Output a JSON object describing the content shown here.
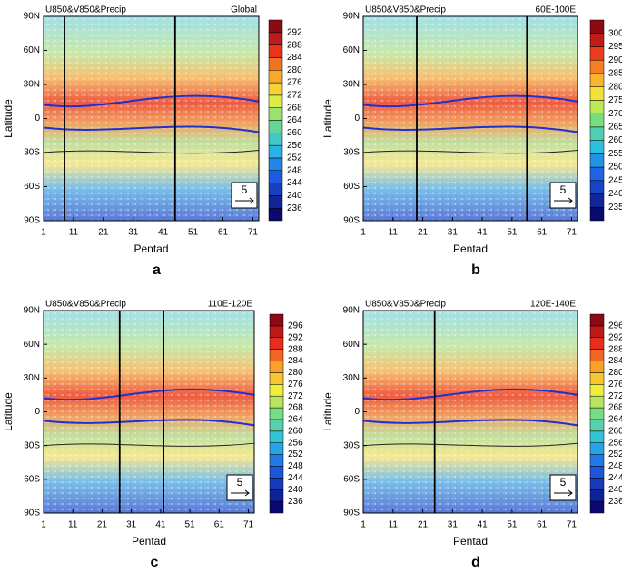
{
  "chart_data": [
    {
      "type": "vector",
      "title": "U850&V850&Precip",
      "region": "Global",
      "xlabel": "Pentad",
      "ylabel": "Latitude",
      "panel_label": "a",
      "xlim": [
        1,
        73
      ],
      "xticks": [
        1,
        11,
        21,
        31,
        41,
        51,
        61,
        71
      ],
      "ylim": [
        -90,
        90
      ],
      "yticks": [
        {
          "value": -90,
          "label": "90S"
        },
        {
          "value": -60,
          "label": "60S"
        },
        {
          "value": -30,
          "label": "30S"
        },
        0,
        {
          "value": 30,
          "label": "30N"
        },
        {
          "value": 60,
          "label": "60N"
        },
        {
          "value": 90,
          "label": "90N"
        }
      ],
      "vlines": [
        8,
        45
      ],
      "reference_vector": 5,
      "colorbar": [
        236,
        240,
        244,
        248,
        252,
        256,
        260,
        264,
        268,
        272,
        276,
        280,
        284,
        288,
        292
      ]
    },
    {
      "type": "vector",
      "title": "U850&V850&Precip",
      "region": "60E-100E",
      "xlabel": "Pentad",
      "ylabel": "Latitude",
      "panel_label": "b",
      "xlim": [
        1,
        73
      ],
      "xticks": [
        1,
        11,
        21,
        31,
        41,
        51,
        61,
        71
      ],
      "ylim": [
        -90,
        90
      ],
      "yticks": [
        {
          "value": -90,
          "label": "90S"
        },
        {
          "value": -60,
          "label": "60S"
        },
        {
          "value": -30,
          "label": "30S"
        },
        0,
        {
          "value": 30,
          "label": "30N"
        },
        {
          "value": 60,
          "label": "60N"
        },
        {
          "value": 90,
          "label": "90N"
        }
      ],
      "vlines": [
        19,
        56
      ],
      "reference_vector": 5,
      "colorbar": [
        235,
        240,
        245,
        250,
        255,
        260,
        265,
        270,
        275,
        280,
        285,
        290,
        295,
        300
      ]
    },
    {
      "type": "vector",
      "title": "U850&V850&Precip",
      "region": "110E-120E",
      "xlabel": "Pentad",
      "ylabel": "Latitude",
      "panel_label": "c",
      "xlim": [
        1,
        73
      ],
      "xticks": [
        1,
        11,
        21,
        31,
        41,
        51,
        61,
        71
      ],
      "ylim": [
        -90,
        90
      ],
      "yticks": [
        {
          "value": -90,
          "label": "90S"
        },
        {
          "value": -60,
          "label": "60S"
        },
        {
          "value": -30,
          "label": "30S"
        },
        0,
        {
          "value": 30,
          "label": "30N"
        },
        {
          "value": 60,
          "label": "60N"
        },
        {
          "value": 90,
          "label": "90N"
        }
      ],
      "vlines": [
        27,
        42
      ],
      "reference_vector": 5,
      "colorbar": [
        236,
        240,
        244,
        248,
        252,
        256,
        260,
        264,
        268,
        272,
        276,
        280,
        284,
        288,
        292,
        296
      ]
    },
    {
      "type": "vector",
      "title": "U850&V850&Precip",
      "region": "120E-140E",
      "xlabel": "Pentad",
      "ylabel": "Latitude",
      "panel_label": "d",
      "xlim": [
        1,
        73
      ],
      "xticks": [
        1,
        11,
        21,
        31,
        41,
        51,
        61,
        71
      ],
      "ylim": [
        -90,
        90
      ],
      "yticks": [
        {
          "value": -90,
          "label": "90S"
        },
        {
          "value": -60,
          "label": "60S"
        },
        {
          "value": -30,
          "label": "30S"
        },
        0,
        {
          "value": 30,
          "label": "30N"
        },
        {
          "value": 60,
          "label": "60N"
        },
        {
          "value": 90,
          "label": "90N"
        }
      ],
      "vlines": [
        25
      ],
      "reference_vector": 5,
      "colorbar": [
        236,
        240,
        244,
        248,
        252,
        256,
        260,
        264,
        268,
        272,
        276,
        280,
        284,
        288,
        292,
        296
      ]
    }
  ]
}
